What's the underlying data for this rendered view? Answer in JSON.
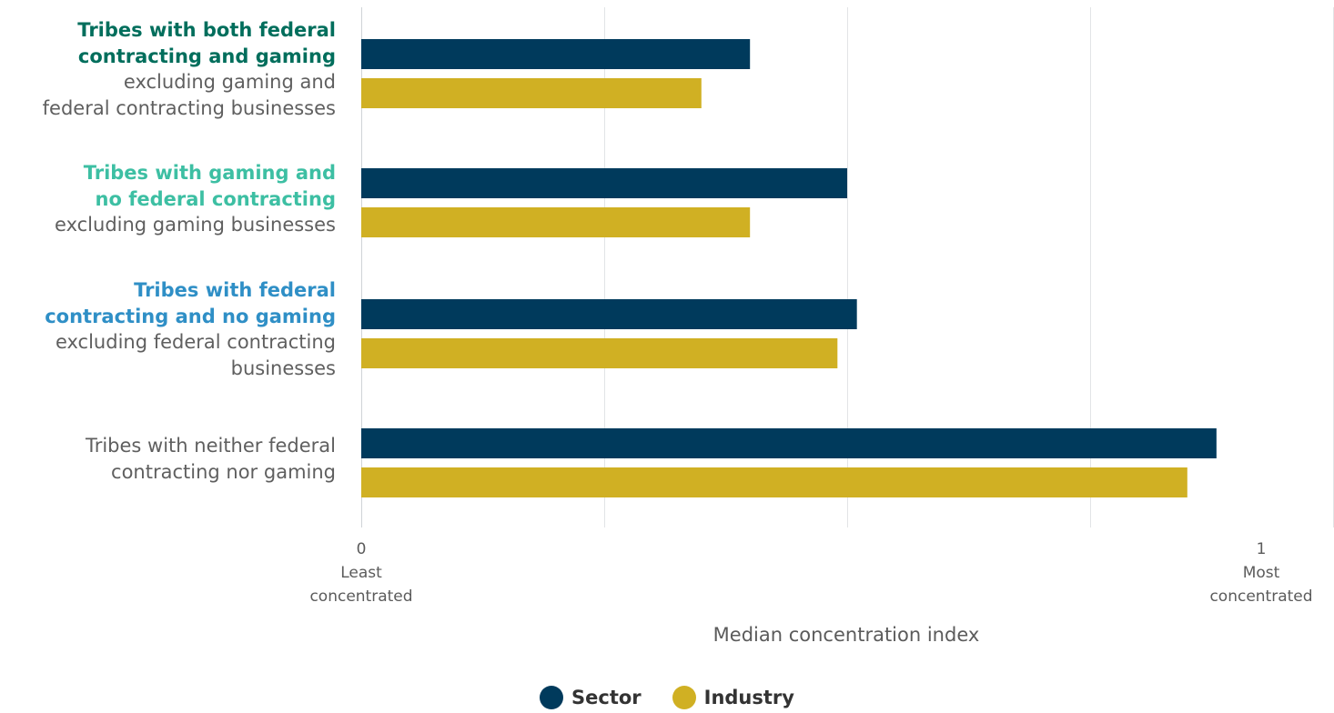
{
  "colors": {
    "sector": "#003a5c",
    "industry": "#d0b023",
    "both_heading": "#006e5c",
    "gaming_heading": "#3dbfa3",
    "federal_heading": "#2f8fc6",
    "neither_heading": "#5f5f5f",
    "grid": "#e2e4e6"
  },
  "chart_data": {
    "type": "bar",
    "orientation": "horizontal",
    "categories": [
      {
        "heading_lines": [
          "Tribes with both federal",
          "contracting and gaming"
        ],
        "sub_lines": [
          "excluding gaming and",
          "federal contracting businesses"
        ],
        "heading_color": "#006e5c"
      },
      {
        "heading_lines": [
          "Tribes with gaming and",
          "no federal contracting"
        ],
        "sub_lines": [
          "excluding gaming businesses"
        ],
        "heading_color": "#3dbfa3"
      },
      {
        "heading_lines": [
          "Tribes with federal",
          "contracting and no gaming"
        ],
        "sub_lines": [
          "excluding federal contracting",
          "businesses"
        ],
        "heading_color": "#2f8fc6"
      },
      {
        "heading_lines": [
          "Tribes with neither federal",
          "contracting nor gaming"
        ],
        "sub_lines": [],
        "heading_color": "#5f5f5f"
      }
    ],
    "series": [
      {
        "name": "Sector",
        "color": "#003a5c",
        "values": [
          0.4,
          0.5,
          0.51,
          0.88
        ]
      },
      {
        "name": "Industry",
        "color": "#d0b023",
        "values": [
          0.35,
          0.4,
          0.49,
          0.85
        ]
      }
    ],
    "xlim": [
      0,
      1
    ],
    "xticks": [
      {
        "value": 0,
        "label": "0",
        "sublabel": [
          "Least",
          "concentrated"
        ]
      },
      {
        "value": 1,
        "label": "1",
        "sublabel": [
          "Most",
          "concentrated"
        ]
      }
    ],
    "gridlines": [
      0,
      0.25,
      0.5,
      0.75,
      1
    ],
    "xlabel": "Median concentration index",
    "legend": {
      "position": "bottom-center"
    }
  }
}
